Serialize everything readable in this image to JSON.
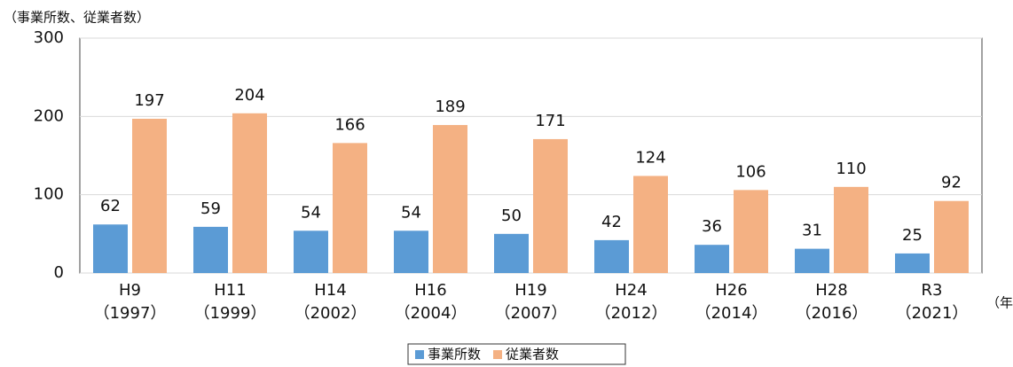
{
  "chart_data": {
    "type": "bar",
    "ylabel": "（事業所数、従業者数）",
    "xlabel": "（年）",
    "categories": [
      "H9\n（1997）",
      "H11\n（1999）",
      "H14\n（2002）",
      "H16\n（2004）",
      "H19\n（2007）",
      "H24\n（2012）",
      "H26\n（2014）",
      "H28\n（2016）",
      "R3\n（2021）"
    ],
    "series": [
      {
        "name": "事業所数",
        "color": "#5b9bd5",
        "values": [
          62,
          59,
          54,
          54,
          50,
          42,
          36,
          31,
          25
        ]
      },
      {
        "name": "従業者数",
        "color": "#f4b183",
        "values": [
          197,
          204,
          166,
          189,
          171,
          124,
          106,
          110,
          92
        ]
      }
    ],
    "ylim": [
      0,
      300
    ],
    "yticks": [
      0,
      100,
      200,
      300
    ],
    "grid": true,
    "legend": "bottom"
  }
}
